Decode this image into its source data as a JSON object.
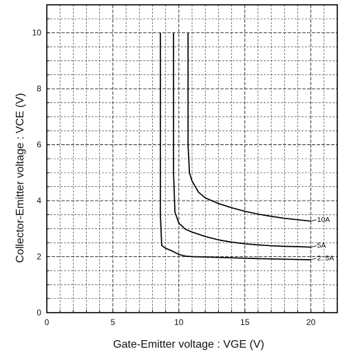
{
  "chart_data": {
    "type": "line",
    "title": "",
    "xlabel": "Gate-Emitter voltage : VGE (V)",
    "ylabel": "Collector-Emitter voltage : VCE (V)",
    "xlim": [
      0,
      22
    ],
    "ylim": [
      0,
      11
    ],
    "grid": true,
    "grid_style": "dashed",
    "x_ticks": [
      0,
      5,
      10,
      15,
      20
    ],
    "y_ticks": [
      0,
      2,
      4,
      6,
      8,
      10
    ],
    "x_tick_labels": [
      "0",
      "5",
      "10",
      "15",
      "20"
    ],
    "y_tick_labels": [
      "0",
      "2",
      "4",
      "6",
      "8",
      "10"
    ],
    "line_color": "#000000",
    "series": [
      {
        "name": "10A",
        "label": "10A",
        "x": [
          10.7,
          10.7,
          10.8,
          11.0,
          11.5,
          12.0,
          13.0,
          14.0,
          15.0,
          16.0,
          17.0,
          18.0,
          19.0,
          20.0
        ],
        "y": [
          10.0,
          6.0,
          5.0,
          4.7,
          4.3,
          4.1,
          3.9,
          3.75,
          3.62,
          3.52,
          3.44,
          3.37,
          3.32,
          3.27
        ]
      },
      {
        "name": "5A",
        "label": "5A",
        "x": [
          9.6,
          9.6,
          9.7,
          10.0,
          10.5,
          11.0,
          12.0,
          13.0,
          14.0,
          15.0,
          16.0,
          17.0,
          18.0,
          19.0,
          20.0
        ],
        "y": [
          10.0,
          5.0,
          3.6,
          3.2,
          2.98,
          2.88,
          2.72,
          2.6,
          2.52,
          2.46,
          2.42,
          2.39,
          2.37,
          2.36,
          2.34
        ]
      },
      {
        "name": "2.5A",
        "label": "2. 5A",
        "x": [
          8.6,
          8.6,
          8.7,
          9.0,
          9.5,
          10.0,
          10.5,
          11.0,
          12.0,
          14.0,
          16.0,
          18.0,
          20.0
        ],
        "y": [
          10.0,
          3.5,
          2.4,
          2.3,
          2.2,
          2.08,
          2.02,
          2.0,
          1.99,
          1.96,
          1.93,
          1.91,
          1.89
        ]
      }
    ]
  }
}
